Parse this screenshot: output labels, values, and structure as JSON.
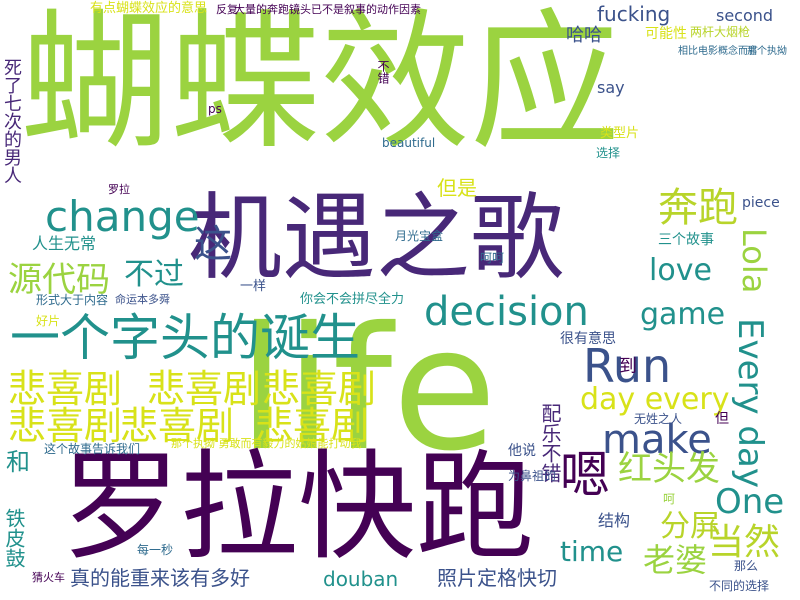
{
  "palette": {
    "lime": "#9bd340",
    "green": "#53c068",
    "teal": "#21918c",
    "blue": "#2f6b8e",
    "navy": "#3b528b",
    "purple": "#440154",
    "violet": "#482878",
    "yellow": "#d8e219",
    "gold": "#b8d42a",
    "mint": "#35b779"
  },
  "words": [
    "蝴蝶效应",
    "life",
    "罗拉快跑",
    "机遇之歌",
    "一个字头的诞生",
    "悲喜剧",
    "change",
    "decision",
    "Run",
    "make",
    "奔跑",
    "Lola",
    "Every day",
    "day every",
    "game",
    "love",
    "源代码",
    "不过",
    "这",
    "红头发",
    "嗯",
    "One",
    "time",
    "分屏",
    "老婆",
    "当然",
    "真的能重来该有多好",
    "照片定格快切",
    "douban",
    "死了七次的男人",
    "有点蝴蝶效应的意思",
    "大量的奔跑镜头已不是叙事的动作因素",
    "fucking",
    "second",
    "哈哈",
    "可能性",
    "两杆大烟枪",
    "相比电影概念而言",
    "那个执拗",
    "say",
    "ps",
    "beautiful",
    "选择",
    "类型片",
    "罗拉",
    "但是",
    "月光宝盒",
    "三个故事",
    "piece",
    "人生无常",
    "形式大于内容",
    "命运本多舜",
    "一样",
    "你会不会拼尽全力",
    "很有意思",
    "好片",
    "猜火车",
    "无姓之人",
    "这个故事告诉我们",
    "那个执拗 勇敢而有毅力的姑娘能打动我",
    "配乐不错",
    "和",
    "铁皮鼓",
    "结构",
    "为鼻祖的",
    "他说",
    "那么",
    "每一秒",
    "不同的选择",
    "呵呵",
    "到",
    "但",
    "不错",
    "反复",
    "呵"
  ]
}
